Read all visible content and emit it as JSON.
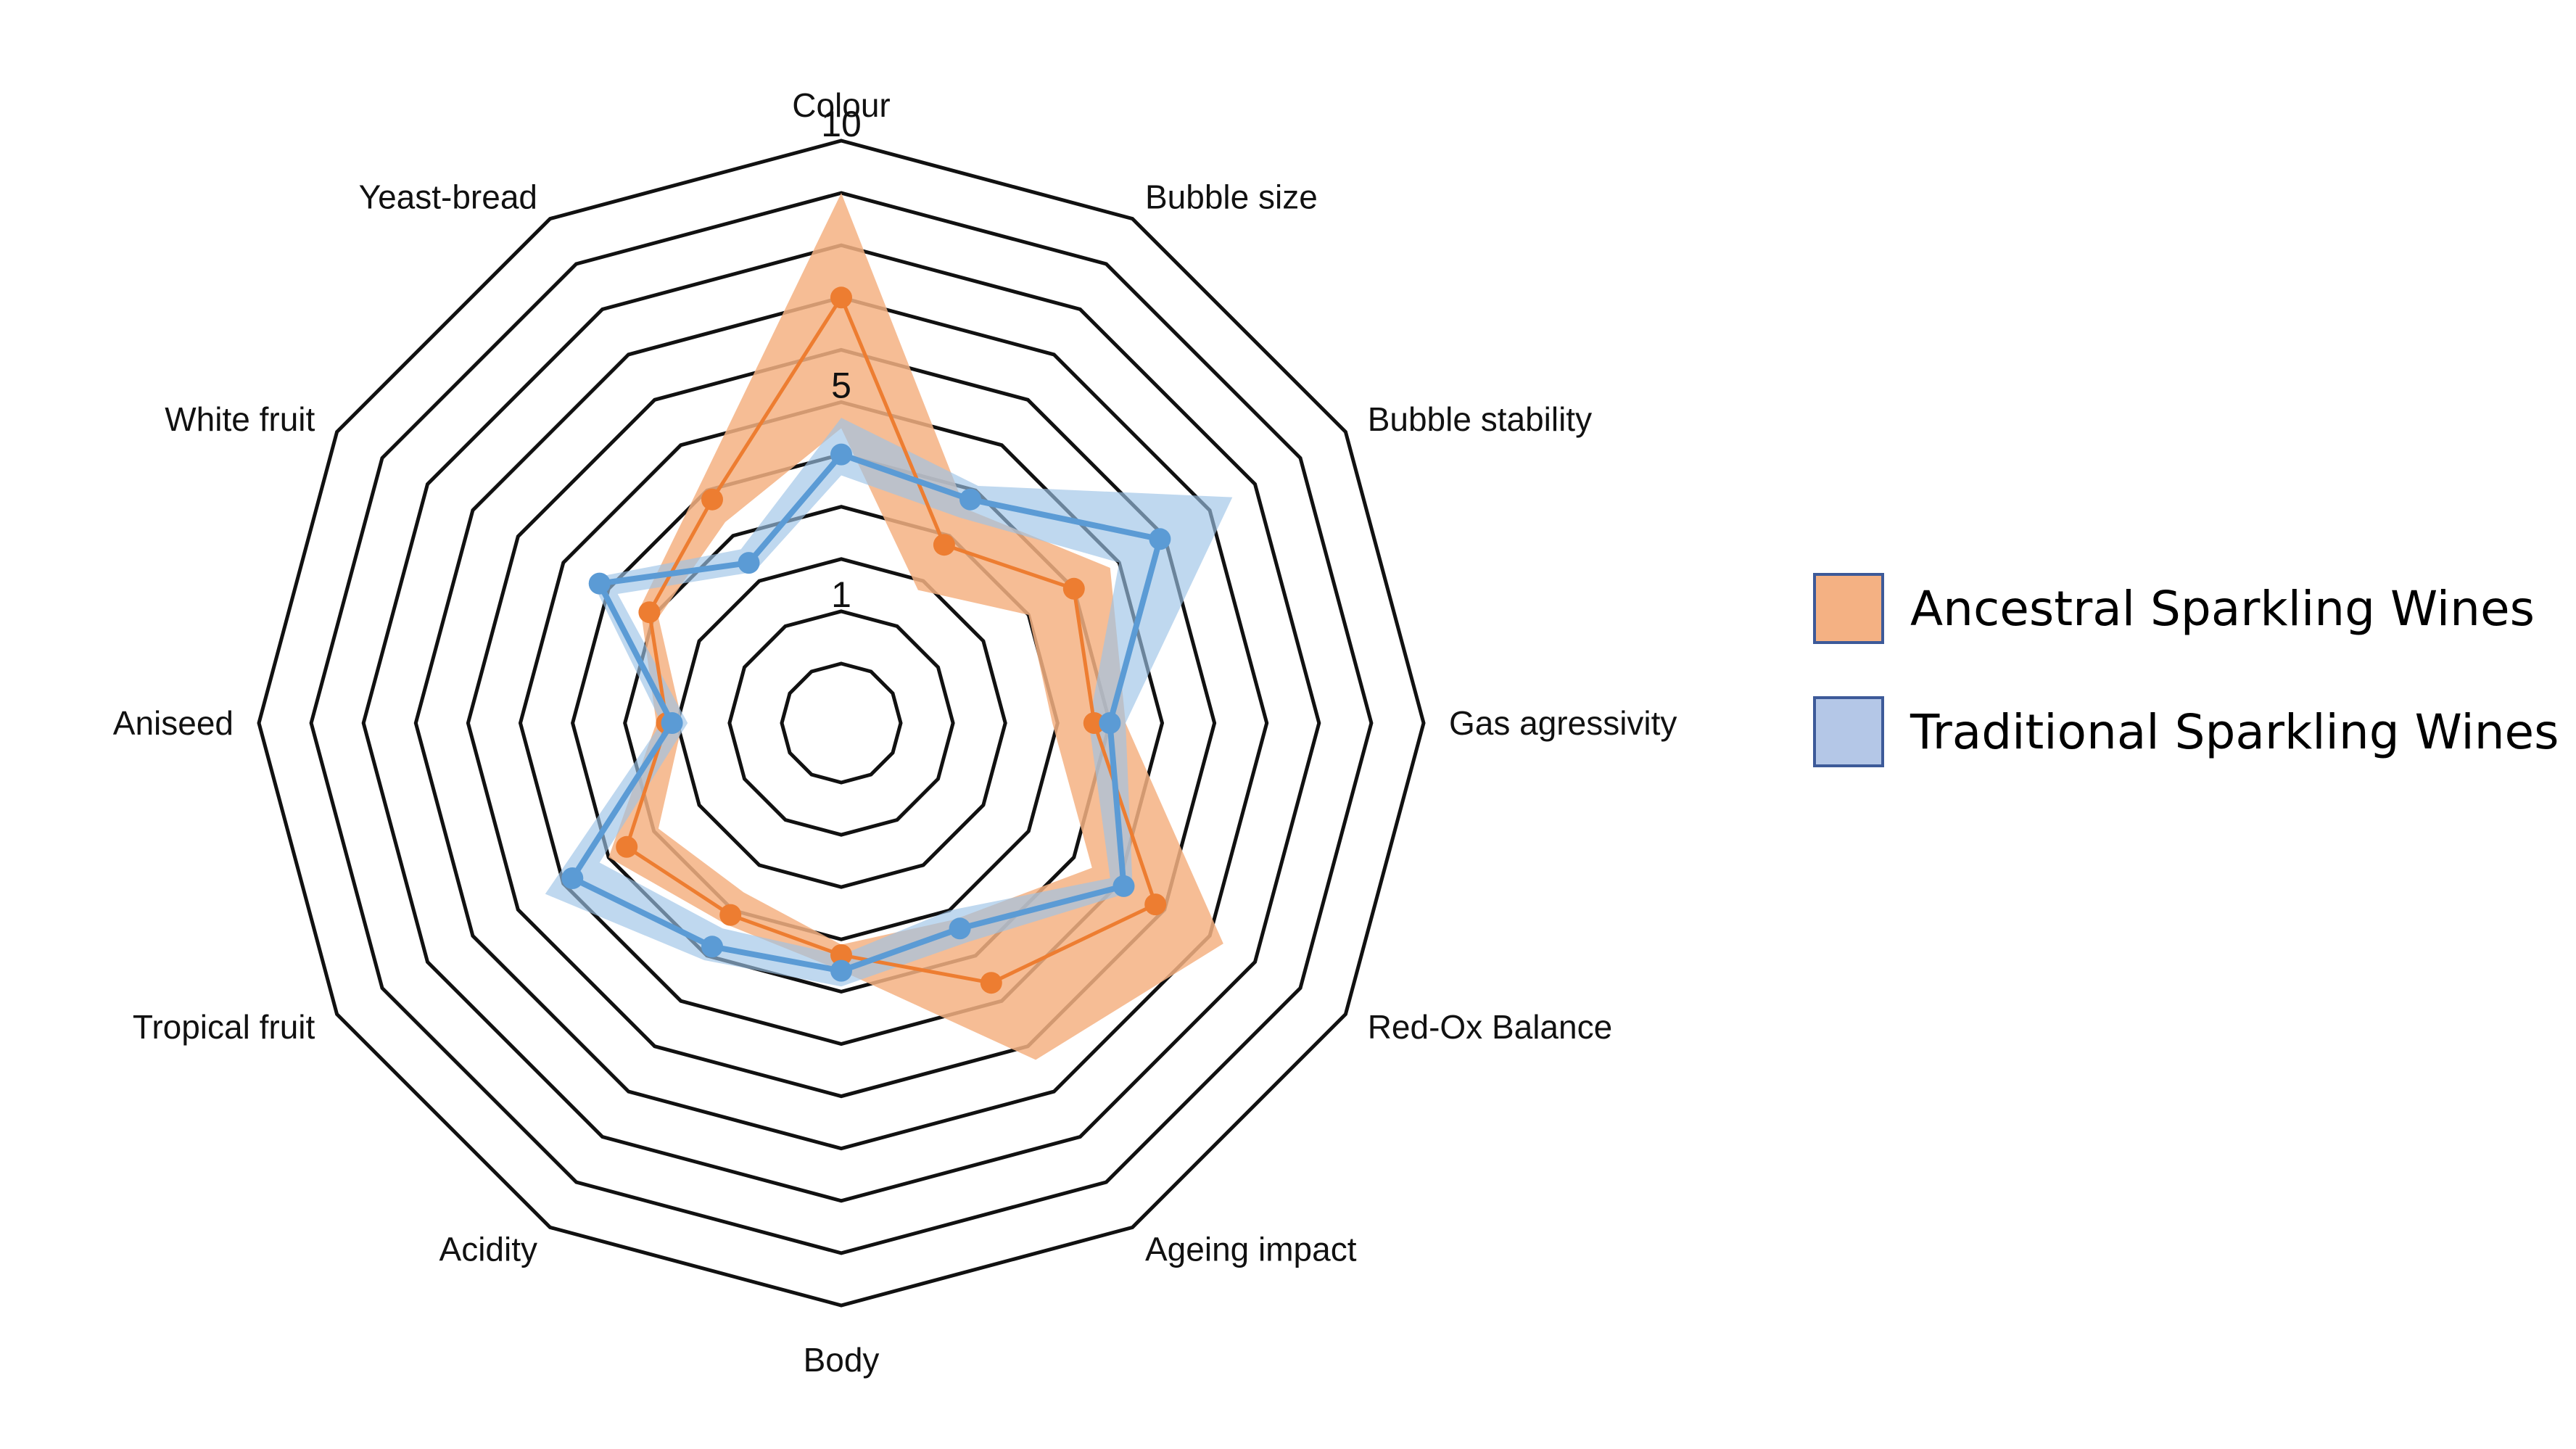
{
  "chart_data": {
    "type": "radar",
    "categories": [
      "Colour",
      "Bubble size",
      "Bubble stability",
      "Gas agressivity",
      "Red-Ox Balance",
      "Ageing impact",
      "Body",
      "Acidity",
      "Tropical fruit",
      "Aniseed",
      "White fruit",
      "Yeast-bread"
    ],
    "rlim": [
      0,
      10
    ],
    "ring_count": 10,
    "tick_labels": [
      {
        "value": 1,
        "label": "1"
      },
      {
        "value": 5,
        "label": "5"
      },
      {
        "value": 10,
        "label": "10"
      }
    ],
    "series": [
      {
        "name": "Ancestral Sparkling Wines",
        "color": "#ed7d31",
        "fill": "#f4b183",
        "values": [
          7.0,
          2.8,
          4.0,
          3.7,
          5.8,
          4.6,
          3.3,
          3.1,
          3.6,
          2.2,
          3.1,
          3.8
        ],
        "range_upper": [
          9.0,
          3.6,
          4.8,
          4.3,
          7.3,
          6.3,
          3.6,
          3.3,
          4.0,
          2.4,
          3.3,
          4.2
        ],
        "range_lower": [
          4.5,
          1.8,
          3.0,
          2.9,
          4.4,
          3.2,
          3.1,
          2.6,
          2.9,
          1.9,
          2.9,
          3.3
        ]
      },
      {
        "name": "Traditional Sparkling Wines",
        "color": "#5b9bd5",
        "fill": "#9dc3e6",
        "values": [
          4.0,
          3.8,
          5.9,
          4.0,
          5.1,
          3.4,
          3.6,
          3.8,
          4.8,
          2.1,
          4.2,
          2.4
        ],
        "range_upper": [
          4.7,
          4.1,
          7.5,
          4.3,
          5.3,
          3.7,
          3.9,
          4.1,
          5.4,
          2.3,
          4.4,
          2.7
        ],
        "range_lower": [
          3.6,
          3.4,
          5.0,
          3.6,
          4.8,
          3.0,
          3.3,
          3.4,
          4.2,
          1.8,
          3.8,
          2.2
        ]
      }
    ],
    "legend": {
      "position": "right"
    }
  }
}
